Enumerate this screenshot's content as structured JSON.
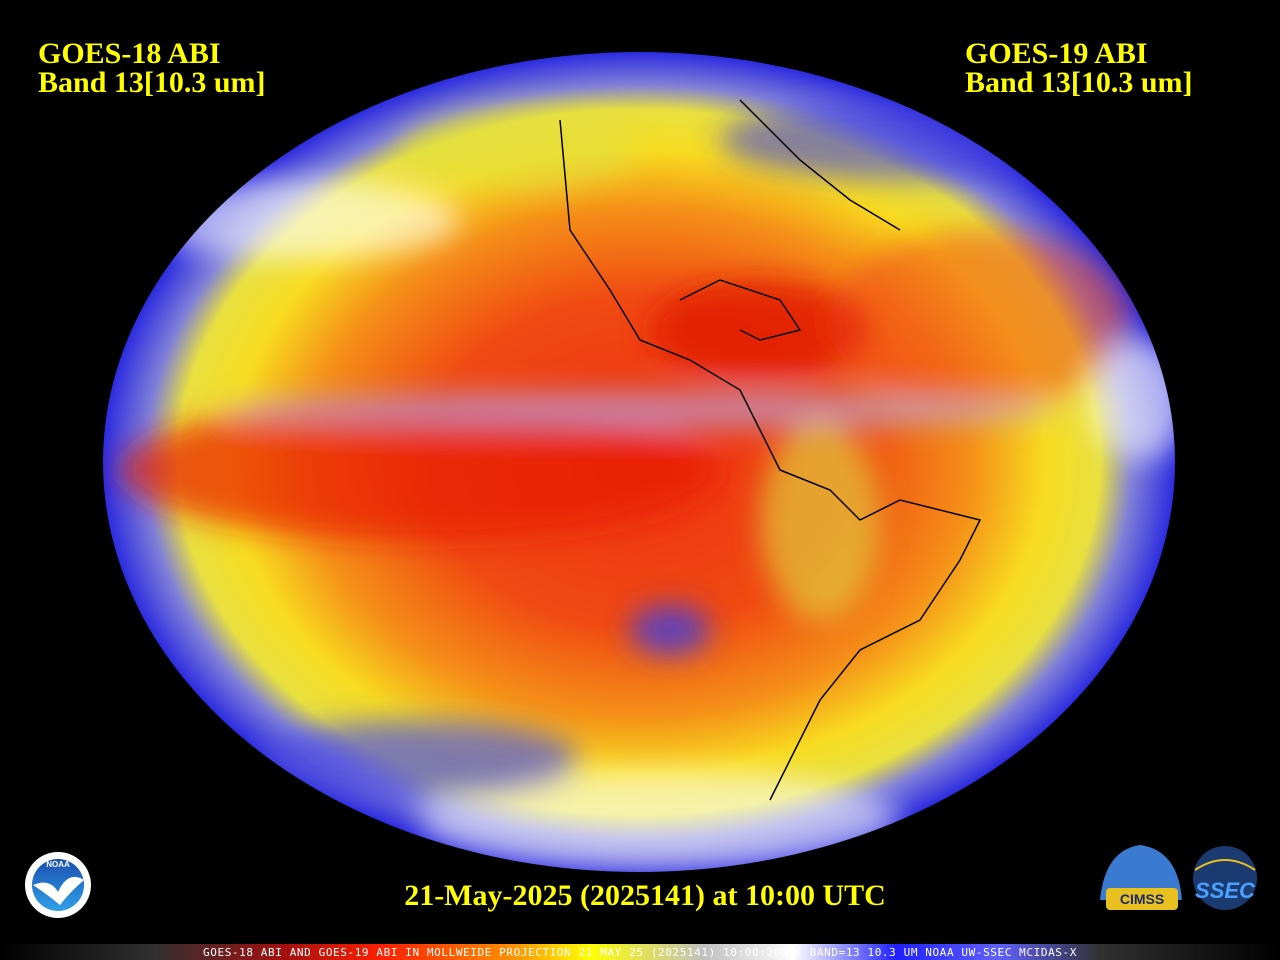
{
  "header": {
    "left": {
      "line1": "GOES-18 ABI",
      "line2": "Band 13[10.3 um]"
    },
    "right": {
      "line1": "GOES-19 ABI",
      "line2": "Band 13[10.3 um]"
    }
  },
  "timestamp": "21-May-2025 (2025141) at 10:00 UTC",
  "logos": {
    "noaa": "NOAA",
    "cimss": "CIMSS",
    "ssec": "SSEC"
  },
  "footer": "GOES-18 ABI AND GOES-19 ABI IN MOLLWEIDE PROJECTION 21 MAY 25 (2025141) 10:00:20UTC BAND=13 10.3 UM NOAA UW-SSEC MCIDAS-X"
}
